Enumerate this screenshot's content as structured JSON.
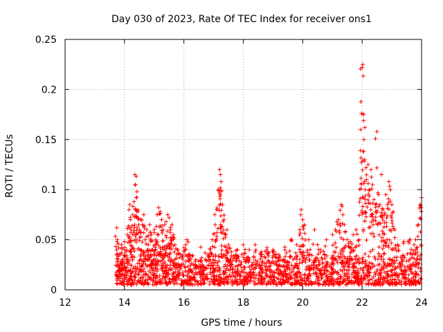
{
  "chart_data": {
    "type": "scatter",
    "title": "Day 030 of 2023, Rate Of TEC Index for receiver ons1",
    "xlabel": "GPS time / hours",
    "ylabel": "ROTI / TECUs",
    "xlim": [
      12,
      24
    ],
    "ylim": [
      0,
      0.25
    ],
    "xticks": [
      12,
      14,
      16,
      18,
      20,
      22,
      24
    ],
    "xtick_labels": [
      "12",
      "14",
      "16",
      "18",
      "20",
      "22",
      "24"
    ],
    "yticks": [
      0,
      0.05,
      0.1,
      0.15,
      0.2,
      0.25
    ],
    "ytick_labels": [
      "0",
      "0.05",
      "0.1",
      "0.15",
      "0.2",
      "0.25"
    ],
    "grid": true,
    "marker": "+",
    "series": [
      {
        "name": "ROTI",
        "color": "#ff0000",
        "points": [
          [
            13.72,
            0.015
          ],
          [
            13.74,
            0.062
          ],
          [
            13.76,
            0.05
          ],
          [
            13.8,
            0.028
          ],
          [
            13.85,
            0.035
          ],
          [
            13.9,
            0.045
          ],
          [
            13.95,
            0.03
          ],
          [
            14.0,
            0.048
          ],
          [
            14.05,
            0.038
          ],
          [
            14.1,
            0.055
          ],
          [
            14.15,
            0.08
          ],
          [
            14.18,
            0.085
          ],
          [
            14.2,
            0.07
          ],
          [
            14.22,
            0.06
          ],
          [
            14.28,
            0.075
          ],
          [
            14.32,
            0.088
          ],
          [
            14.35,
            0.115
          ],
          [
            14.37,
            0.105
          ],
          [
            14.4,
            0.092
          ],
          [
            14.42,
            0.098
          ],
          [
            14.45,
            0.078
          ],
          [
            14.5,
            0.06
          ],
          [
            14.55,
            0.07
          ],
          [
            14.6,
            0.065
          ],
          [
            14.65,
            0.075
          ],
          [
            14.7,
            0.05
          ],
          [
            14.75,
            0.06
          ],
          [
            14.8,
            0.045
          ],
          [
            14.85,
            0.065
          ],
          [
            14.9,
            0.055
          ],
          [
            14.95,
            0.04
          ],
          [
            15.0,
            0.06
          ],
          [
            15.05,
            0.05
          ],
          [
            15.1,
            0.075
          ],
          [
            15.15,
            0.082
          ],
          [
            15.2,
            0.078
          ],
          [
            15.25,
            0.07
          ],
          [
            15.3,
            0.06
          ],
          [
            15.35,
            0.065
          ],
          [
            15.4,
            0.068
          ],
          [
            15.45,
            0.075
          ],
          [
            15.5,
            0.072
          ],
          [
            15.55,
            0.06
          ],
          [
            15.6,
            0.065
          ],
          [
            15.65,
            0.055
          ],
          [
            15.7,
            0.045
          ],
          [
            15.8,
            0.04
          ],
          [
            15.9,
            0.035
          ],
          [
            16.0,
            0.042
          ],
          [
            16.1,
            0.05
          ],
          [
            16.2,
            0.035
          ],
          [
            16.4,
            0.03
          ],
          [
            16.6,
            0.032
          ],
          [
            16.8,
            0.035
          ],
          [
            16.95,
            0.05
          ],
          [
            17.05,
            0.065
          ],
          [
            17.1,
            0.08
          ],
          [
            17.15,
            0.1
          ],
          [
            17.2,
            0.12
          ],
          [
            17.23,
            0.115
          ],
          [
            17.25,
            0.108
          ],
          [
            17.3,
            0.085
          ],
          [
            17.35,
            0.07
          ],
          [
            17.4,
            0.055
          ],
          [
            17.45,
            0.06
          ],
          [
            17.5,
            0.045
          ],
          [
            17.6,
            0.038
          ],
          [
            17.8,
            0.04
          ],
          [
            18.0,
            0.045
          ],
          [
            18.2,
            0.04
          ],
          [
            18.4,
            0.045
          ],
          [
            18.6,
            0.038
          ],
          [
            18.8,
            0.042
          ],
          [
            19.0,
            0.04
          ],
          [
            19.2,
            0.035
          ],
          [
            19.4,
            0.04
          ],
          [
            19.6,
            0.05
          ],
          [
            19.8,
            0.045
          ],
          [
            19.9,
            0.06
          ],
          [
            19.95,
            0.08
          ],
          [
            20.0,
            0.07
          ],
          [
            20.05,
            0.065
          ],
          [
            20.2,
            0.05
          ],
          [
            20.4,
            0.06
          ],
          [
            20.5,
            0.045
          ],
          [
            20.6,
            0.04
          ],
          [
            20.8,
            0.05
          ],
          [
            21.0,
            0.055
          ],
          [
            21.1,
            0.06
          ],
          [
            21.2,
            0.07
          ],
          [
            21.3,
            0.085
          ],
          [
            21.35,
            0.075
          ],
          [
            21.4,
            0.065
          ],
          [
            21.5,
            0.05
          ],
          [
            21.6,
            0.048
          ],
          [
            21.7,
            0.055
          ],
          [
            21.8,
            0.06
          ],
          [
            21.9,
            0.05
          ],
          [
            21.95,
            0.16
          ],
          [
            21.98,
            0.176
          ],
          [
            22.0,
            0.222
          ],
          [
            22.02,
            0.225
          ],
          [
            22.04,
            0.175
          ],
          [
            22.06,
            0.15
          ],
          [
            22.08,
            0.13
          ],
          [
            22.1,
            0.1
          ],
          [
            22.15,
            0.11
          ],
          [
            22.2,
            0.125
          ],
          [
            22.25,
            0.1
          ],
          [
            22.3,
            0.12
          ],
          [
            22.35,
            0.105
          ],
          [
            22.4,
            0.09
          ],
          [
            22.45,
            0.085
          ],
          [
            22.5,
            0.158
          ],
          [
            22.55,
            0.095
          ],
          [
            22.6,
            0.085
          ],
          [
            22.65,
            0.115
          ],
          [
            22.7,
            0.08
          ],
          [
            22.75,
            0.075
          ],
          [
            22.8,
            0.095
          ],
          [
            22.85,
            0.085
          ],
          [
            22.9,
            0.108
          ],
          [
            22.95,
            0.1
          ],
          [
            23.0,
            0.085
          ],
          [
            23.05,
            0.078
          ],
          [
            23.1,
            0.06
          ],
          [
            23.2,
            0.045
          ],
          [
            23.4,
            0.048
          ],
          [
            23.6,
            0.05
          ],
          [
            23.75,
            0.045
          ],
          [
            23.8,
            0.05
          ],
          [
            23.9,
            0.065
          ],
          [
            23.95,
            0.085
          ],
          [
            24.0,
            0.092
          ],
          [
            13.9,
            0.022
          ],
          [
            14.2,
            0.02
          ],
          [
            14.6,
            0.024
          ],
          [
            15.0,
            0.019
          ],
          [
            15.4,
            0.022
          ],
          [
            15.8,
            0.018
          ],
          [
            16.2,
            0.02
          ],
          [
            16.6,
            0.016
          ],
          [
            17.0,
            0.021
          ],
          [
            17.4,
            0.019
          ],
          [
            17.8,
            0.02
          ],
          [
            18.2,
            0.015
          ],
          [
            18.6,
            0.022
          ],
          [
            19.0,
            0.018
          ],
          [
            19.4,
            0.02
          ],
          [
            19.8,
            0.017
          ],
          [
            20.2,
            0.021
          ],
          [
            20.6,
            0.019
          ],
          [
            21.0,
            0.02
          ],
          [
            21.4,
            0.016
          ],
          [
            21.8,
            0.022
          ],
          [
            22.2,
            0.018
          ],
          [
            22.6,
            0.02
          ],
          [
            23.0,
            0.015
          ],
          [
            23.4,
            0.019
          ],
          [
            23.8,
            0.018
          ]
        ],
        "dense_band": {
          "x_range": [
            13.72,
            24.0
          ],
          "y_range": [
            0.005,
            0.045
          ],
          "description": "dense cloud of ROTI samples between about 0.005 and 0.045 TECU across the observed interval"
        }
      }
    ]
  }
}
